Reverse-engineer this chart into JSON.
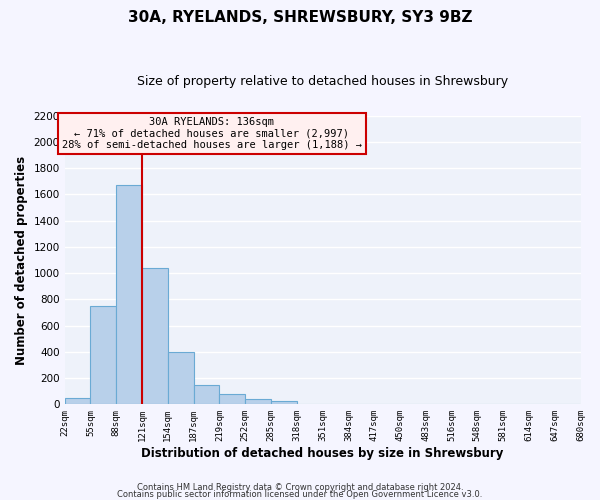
{
  "title": "30A, RYELANDS, SHREWSBURY, SY3 9BZ",
  "subtitle": "Size of property relative to detached houses in Shrewsbury",
  "xlabel": "Distribution of detached houses by size in Shrewsbury",
  "ylabel": "Number of detached properties",
  "bar_color": "#b8d0ea",
  "bar_edge_color": "#6aaad4",
  "background_color": "#eef2fa",
  "grid_color": "#ffffff",
  "ylim": [
    0,
    2200
  ],
  "yticks": [
    0,
    200,
    400,
    600,
    800,
    1000,
    1200,
    1400,
    1600,
    1800,
    2000,
    2200
  ],
  "bin_labels": [
    "22sqm",
    "55sqm",
    "88sqm",
    "121sqm",
    "154sqm",
    "187sqm",
    "219sqm",
    "252sqm",
    "285sqm",
    "318sqm",
    "351sqm",
    "384sqm",
    "417sqm",
    "450sqm",
    "483sqm",
    "516sqm",
    "548sqm",
    "581sqm",
    "614sqm",
    "647sqm",
    "680sqm"
  ],
  "bar_heights": [
    50,
    750,
    1670,
    1040,
    400,
    150,
    80,
    40,
    25,
    0,
    0,
    0,
    0,
    0,
    0,
    0,
    0,
    0,
    0,
    0
  ],
  "annotation_line1": "30A RYELANDS: 136sqm",
  "annotation_line2": "← 71% of detached houses are smaller (2,997)",
  "annotation_line3": "28% of semi-detached houses are larger (1,188) →",
  "vline_x": 3,
  "vline_color": "#cc0000",
  "footer1": "Contains HM Land Registry data © Crown copyright and database right 2024.",
  "footer2": "Contains public sector information licensed under the Open Government Licence v3.0.",
  "annotation_box_facecolor": "#fff0f0",
  "annotation_box_edgecolor": "#cc0000"
}
